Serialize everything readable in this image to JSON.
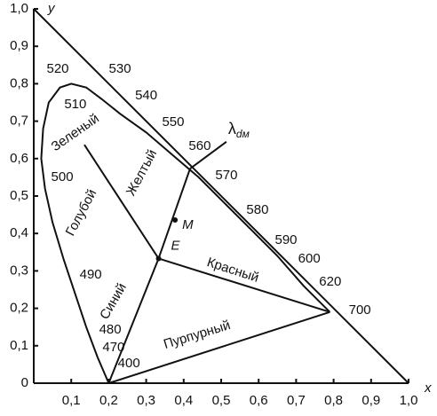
{
  "chart_data": {
    "type": "chromaticity",
    "xlabel": "x",
    "ylabel": "y",
    "xlim": [
      0,
      1.0
    ],
    "ylim": [
      0,
      1.0
    ],
    "xticks": [
      {
        "value": 0.1,
        "label": "0,1"
      },
      {
        "value": 0.2,
        "label": "0,2"
      },
      {
        "value": 0.3,
        "label": "0,3"
      },
      {
        "value": 0.4,
        "label": "0,4"
      },
      {
        "value": 0.5,
        "label": "0,5"
      },
      {
        "value": 0.6,
        "label": "0,6"
      },
      {
        "value": 0.7,
        "label": "0,7"
      },
      {
        "value": 0.8,
        "label": "0,8"
      },
      {
        "value": 0.9,
        "label": "0,9"
      },
      {
        "value": 1.0,
        "label": "1,0"
      }
    ],
    "yticks": [
      0,
      {
        "value": 0.1,
        "label": "0,1"
      },
      {
        "value": 0.2,
        "label": "0,2"
      },
      {
        "value": 0.3,
        "label": "0,3"
      },
      {
        "value": 0.4,
        "label": "0,4"
      },
      {
        "value": 0.5,
        "label": "0,5"
      },
      {
        "value": 0.6,
        "label": "0,6"
      },
      {
        "value": 0.7,
        "label": "0,7"
      },
      {
        "value": 0.8,
        "label": "0,8"
      },
      {
        "value": 0.9,
        "label": "0,9"
      },
      {
        "value": 1.0,
        "label": "1,0"
      }
    ],
    "locus": {
      "x": [
        0.2,
        0.17,
        0.14,
        0.11,
        0.08,
        0.05,
        0.03,
        0.02,
        0.025,
        0.04,
        0.07,
        0.1,
        0.14,
        0.18,
        0.23,
        0.3,
        0.37,
        0.44,
        0.51,
        0.58,
        0.65,
        0.72,
        0.79
      ],
      "y": [
        0.0,
        0.07,
        0.15,
        0.24,
        0.33,
        0.43,
        0.52,
        0.6,
        0.68,
        0.75,
        0.79,
        0.8,
        0.79,
        0.76,
        0.72,
        0.67,
        0.61,
        0.55,
        0.48,
        0.41,
        0.34,
        0.26,
        0.19
      ]
    },
    "wavelengths": {
      "labels": [
        "400",
        "470",
        "480",
        "490",
        "500",
        "510",
        "520",
        "530",
        "540",
        "550",
        "560",
        "570",
        "580",
        "590",
        "600",
        "620",
        "700"
      ],
      "x": [
        0.254,
        0.213,
        0.204,
        0.152,
        0.076,
        0.111,
        0.064,
        0.23,
        0.3,
        0.372,
        0.443,
        0.514,
        0.597,
        0.673,
        0.735,
        0.791,
        0.87
      ],
      "y": [
        0.052,
        0.095,
        0.142,
        0.289,
        0.55,
        0.744,
        0.839,
        0.839,
        0.768,
        0.697,
        0.633,
        0.555,
        0.462,
        0.382,
        0.332,
        0.27,
        0.194
      ]
    },
    "white_point": {
      "label": "E",
      "x": 0.333,
      "y": 0.333
    },
    "sample_point": {
      "label": "M",
      "x": 0.377,
      "y": 0.436
    },
    "dominant_point": {
      "x": 0.417,
      "y": 0.573
    },
    "dominant_end": {
      "x": 0.514,
      "y": 0.645
    },
    "cyan_end": {
      "x": 0.135,
      "y": 0.637
    },
    "lambda_label": "λ",
    "lambda_sub": "dм",
    "regions": [
      "Зеленый",
      "Желтый",
      "Голубой",
      "Синий",
      "Красный",
      "Пурпурный"
    ]
  }
}
